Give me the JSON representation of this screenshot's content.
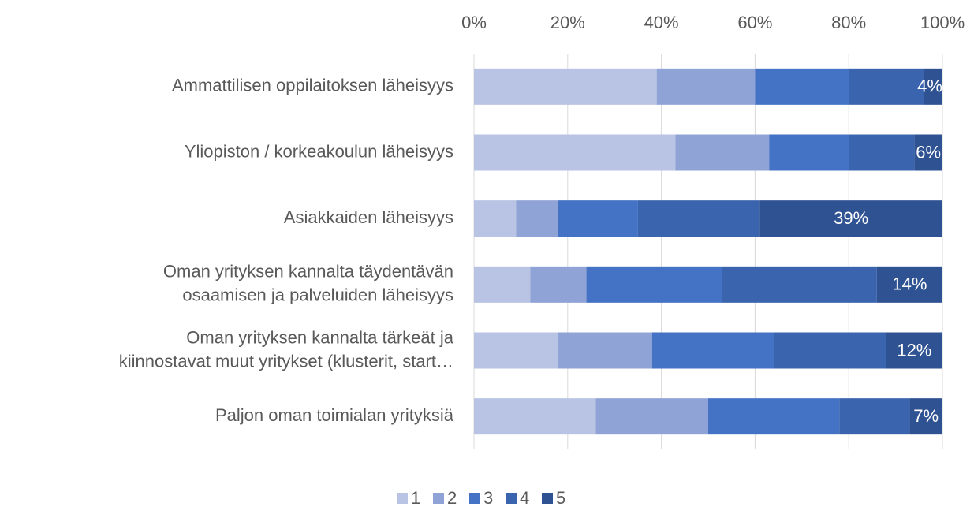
{
  "chart_data": {
    "type": "stacked-bar-horizontal",
    "categories": [
      [
        "Ammattilisen oppilaitoksen läheisyys"
      ],
      [
        "Yliopiston / korkeakoulun läheisyys"
      ],
      [
        "Asiakkaiden läheisyys"
      ],
      [
        "Oman yrityksen kannalta täydentävän",
        "osaamisen ja palveluiden läheisyys"
      ],
      [
        "Oman yrityksen kannalta tärkeät ja",
        "kiinnostavat muut yritykset (klusterit, start…"
      ],
      [
        "Paljon oman toimialan yrityksiä"
      ]
    ],
    "series": [
      {
        "name": "1",
        "color": "#b9c3e3",
        "values": [
          39,
          43,
          9,
          12,
          18,
          26
        ]
      },
      {
        "name": "2",
        "color": "#8fa3d6",
        "values": [
          21,
          20,
          9,
          12,
          20,
          24
        ]
      },
      {
        "name": "3",
        "color": "#4472c4",
        "values": [
          20,
          17,
          17,
          29,
          26,
          28
        ]
      },
      {
        "name": "4",
        "color": "#3b64ae",
        "values": [
          16,
          14,
          26,
          33,
          24,
          15
        ]
      },
      {
        "name": "5",
        "color": "#2f5293",
        "values": [
          4,
          6,
          39,
          14,
          12,
          7
        ],
        "value_labels": [
          "4%",
          "6%",
          "39%",
          "14%",
          "12%",
          "7%"
        ]
      }
    ],
    "xlim": [
      0,
      100
    ],
    "xticks": [
      {
        "value": 0,
        "label": "0%"
      },
      {
        "value": 20,
        "label": "20%"
      },
      {
        "value": 40,
        "label": "40%"
      },
      {
        "value": 60,
        "label": "60%"
      },
      {
        "value": 80,
        "label": "80%"
      },
      {
        "value": 100,
        "label": "100%"
      }
    ],
    "grid": true,
    "legend": "bottom"
  }
}
